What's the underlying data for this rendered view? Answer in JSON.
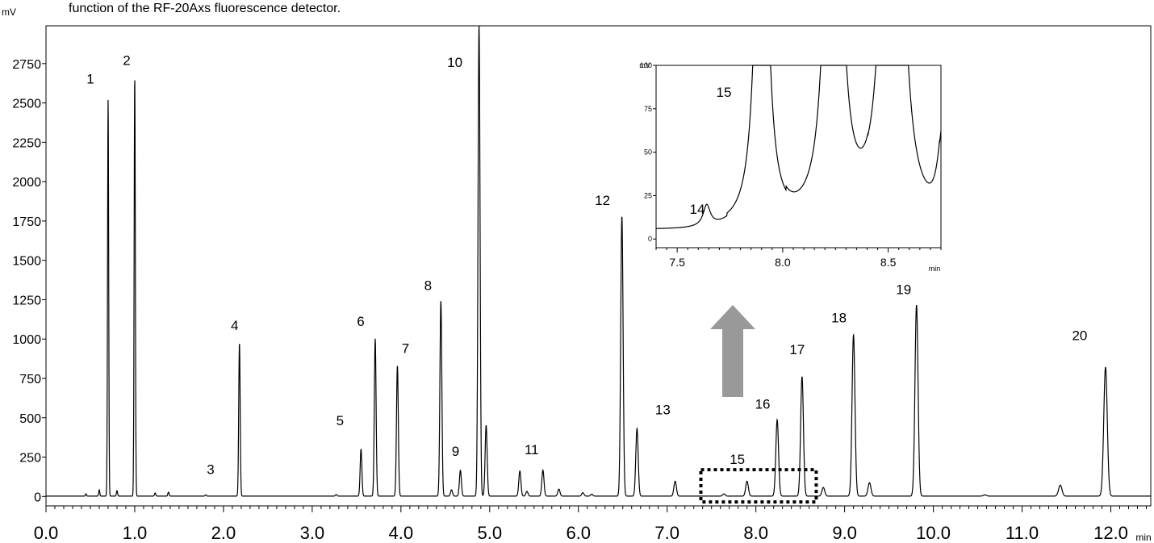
{
  "caption": "function of the RF-20Axs fluorescence detector.",
  "colors": {
    "trace": "#000000",
    "arrow": "#999999",
    "background": "#ffffff"
  },
  "chart_data": [
    {
      "type": "line",
      "ylabel": "mV",
      "xlabel": "min",
      "xlim": [
        0.0,
        12.45
      ],
      "ylim": [
        -60,
        2990
      ],
      "x_ticks": [
        "0.0",
        "1.0",
        "2.0",
        "3.0",
        "4.0",
        "5.0",
        "6.0",
        "7.0",
        "8.0",
        "9.0",
        "10.0",
        "11.0",
        "12.0"
      ],
      "x_tick_values": [
        0,
        1,
        2,
        3,
        4,
        5,
        6,
        7,
        8,
        9,
        10,
        11,
        12
      ],
      "y_ticks": [
        "0",
        "250",
        "500",
        "750",
        "1000",
        "1250",
        "1500",
        "1750",
        "2000",
        "2250",
        "2500",
        "2750"
      ],
      "y_tick_values": [
        0,
        250,
        500,
        750,
        1000,
        1250,
        1500,
        1750,
        2000,
        2250,
        2500,
        2750
      ],
      "peaks": [
        {
          "label": "1",
          "rt": 0.7,
          "height": 2520
        },
        {
          "label": "2",
          "rt": 1.0,
          "height": 2670
        },
        {
          "label": "3",
          "rt": 1.8,
          "height": 8
        },
        {
          "label": "4",
          "rt": 2.18,
          "height": 975
        },
        {
          "label": "5",
          "rt": 3.55,
          "height": 300
        },
        {
          "label": "6",
          "rt": 3.71,
          "height": 1000
        },
        {
          "label": "7",
          "rt": 3.96,
          "height": 830
        },
        {
          "label": "8",
          "rt": 4.45,
          "height": 1240
        },
        {
          "label": "9",
          "rt": 4.67,
          "height": 165
        },
        {
          "label": "10",
          "rt": 4.88,
          "height": 2990
        },
        {
          "label": "11",
          "rt": 5.6,
          "height": 165
        },
        {
          "label": "12",
          "rt": 6.49,
          "height": 1780
        },
        {
          "label": "13",
          "rt": 6.66,
          "height": 430
        },
        {
          "label": "15",
          "rt": 7.9,
          "height": 95
        },
        {
          "label": "16",
          "rt": 8.24,
          "height": 485
        },
        {
          "label": "17",
          "rt": 8.52,
          "height": 760
        },
        {
          "label": "18",
          "rt": 9.1,
          "height": 1025
        },
        {
          "label": "19",
          "rt": 9.81,
          "height": 1215
        },
        {
          "label": "20",
          "rt": 11.94,
          "height": 820
        }
      ],
      "minor_peaks": [
        {
          "rt": 0.45,
          "height": 15
        },
        {
          "rt": 0.6,
          "height": 40
        },
        {
          "rt": 0.8,
          "height": 35
        },
        {
          "rt": 1.23,
          "height": 20
        },
        {
          "rt": 1.38,
          "height": 25
        },
        {
          "rt": 3.27,
          "height": 10
        },
        {
          "rt": 4.57,
          "height": 40
        },
        {
          "rt": 4.96,
          "height": 450
        },
        {
          "rt": 5.34,
          "height": 160
        },
        {
          "rt": 5.42,
          "height": 30
        },
        {
          "rt": 5.78,
          "height": 45
        },
        {
          "rt": 6.05,
          "height": 22
        },
        {
          "rt": 6.15,
          "height": 12
        },
        {
          "rt": 7.09,
          "height": 95
        },
        {
          "rt": 7.64,
          "height": 14
        },
        {
          "rt": 8.76,
          "height": 55
        },
        {
          "rt": 9.28,
          "height": 85
        },
        {
          "rt": 10.58,
          "height": 8
        },
        {
          "rt": 11.43,
          "height": 70
        }
      ],
      "zoom_region": {
        "xlim": [
          7.38,
          8.68
        ],
        "ylim": [
          -35,
          170
        ]
      }
    },
    {
      "type": "line",
      "ylabel": "mV",
      "xlabel": "min",
      "xlim": [
        7.4,
        8.75
      ],
      "ylim": [
        -5,
        100
      ],
      "x_ticks": [
        "7.5",
        "8.0",
        "8.5"
      ],
      "x_tick_values": [
        7.5,
        8.0,
        8.5
      ],
      "y_ticks": [
        "0",
        "25",
        "50",
        "75",
        "100"
      ],
      "y_tick_values": [
        0,
        25,
        50,
        75,
        100
      ],
      "annotations": [
        {
          "label": "15",
          "rt": 7.9
        },
        {
          "label": "14",
          "rt": 7.64
        }
      ]
    }
  ]
}
